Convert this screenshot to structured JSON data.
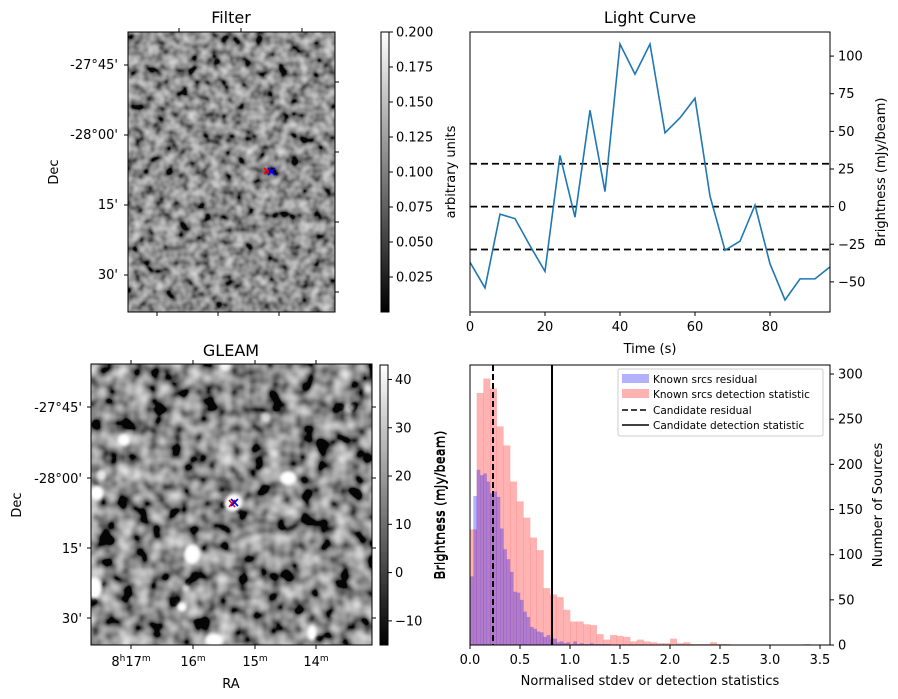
{
  "chart_data": [
    {
      "type": "heatmap",
      "title": "Filter",
      "ylabel": "Dec",
      "xlabel": "",
      "y_tick_labels": [
        "-27°45'",
        "-28°00'",
        "15'",
        "30'"
      ],
      "colormap": "gray",
      "colorbar": {
        "label": "arbitrary units",
        "range": [
          0.0,
          0.2
        ],
        "tick_labels": [
          "0.200",
          "0.175",
          "0.150",
          "0.125",
          "0.100",
          "0.075",
          "0.050",
          "0.025"
        ]
      },
      "markers": [
        {
          "color": "#ff0000",
          "symbol": "x",
          "label": "red-marker"
        },
        {
          "color": "#0000ff",
          "symbol": "x",
          "label": "blue-marker"
        }
      ]
    },
    {
      "type": "line",
      "title": "Light Curve",
      "xlabel": "Time (s)",
      "ylabel": "Brightness (mJy/beam)",
      "left_ylabel": "arbitrary units",
      "xlim": [
        0,
        96
      ],
      "ylim": [
        -70,
        116
      ],
      "x_ticks": [
        0,
        20,
        40,
        60,
        80
      ],
      "y_ticks": [
        -50,
        -25,
        0,
        25,
        50,
        75,
        100
      ],
      "y_tick_labels": [
        "−50",
        "−25",
        "0",
        "25",
        "50",
        "75",
        "100"
      ],
      "series": [
        {
          "name": "light curve",
          "color": "#1f77b4",
          "x": [
            0,
            4,
            8,
            12,
            16,
            20,
            24,
            28,
            32,
            36,
            40,
            44,
            48,
            52,
            56,
            60,
            64,
            68,
            72,
            76,
            80,
            84,
            88,
            92,
            96
          ],
          "y": [
            -37,
            -54,
            -5,
            -8,
            -26,
            -43,
            34,
            -7,
            64,
            10,
            108,
            88,
            108,
            49,
            59,
            72,
            7,
            -29,
            -23,
            1,
            -38,
            -62,
            -48,
            -48,
            -40
          ]
        }
      ],
      "hlines": [
        {
          "y": 28.5,
          "style": "dashed",
          "color": "#000000"
        },
        {
          "y": 0,
          "style": "dashed",
          "color": "#000000"
        },
        {
          "y": -28.5,
          "style": "dashed",
          "color": "#000000"
        }
      ]
    },
    {
      "type": "heatmap",
      "title": "GLEAM",
      "xlabel": "RA",
      "ylabel": "Dec",
      "x_tick_labels": [
        "8h17m",
        "16m",
        "15m",
        "14m"
      ],
      "y_tick_labels": [
        "-27°45'",
        "-28°00'",
        "15'",
        "30'"
      ],
      "colormap": "gray",
      "colorbar": {
        "label": "Brightness (mJy/beam)",
        "range": [
          -15,
          43
        ],
        "tick_labels": [
          "40",
          "30",
          "20",
          "10",
          "0",
          "−10"
        ]
      },
      "markers": [
        {
          "color": "#ff0000",
          "symbol": "x",
          "label": "red-marker"
        },
        {
          "color": "#0000ff",
          "symbol": "x",
          "label": "blue-marker"
        }
      ]
    },
    {
      "type": "bar",
      "subtype": "histogram",
      "xlabel": "Normalised stdev or detection statistics",
      "ylabel": "Number of Sources",
      "left_ylabel": "Brightness (mJy/beam)",
      "xlim": [
        0,
        3.6
      ],
      "ylim": [
        0,
        310
      ],
      "x_ticks": [
        0.0,
        0.5,
        1.0,
        1.5,
        2.0,
        2.5,
        3.0,
        3.5
      ],
      "x_tick_labels": [
        "0.0",
        "0.5",
        "1.0",
        "1.5",
        "2.0",
        "2.5",
        "3.0",
        "3.5"
      ],
      "y_ticks": [
        0,
        50,
        100,
        150,
        200,
        250,
        300
      ],
      "series": [
        {
          "name": "Known srcs residual",
          "color": "#0000ff",
          "alpha": 0.3,
          "bin_start": 0.0,
          "bin_width": 0.0333,
          "values": [
            76,
            165,
            194,
            188,
            190,
            181,
            168,
            170,
            164,
            129,
            106,
            95,
            81,
            59,
            58,
            50,
            37,
            31,
            20,
            18,
            15,
            14,
            9,
            11,
            7,
            7,
            3,
            4,
            2,
            3,
            1,
            4,
            1,
            2,
            1,
            1,
            2,
            1,
            1,
            1,
            1,
            1
          ]
        },
        {
          "name": "Known srcs detection statistic",
          "color": "#ff0000",
          "alpha": 0.3,
          "bin_start": 0.0,
          "bin_width": 0.0667,
          "values": [
            128,
            279,
            295,
            284,
            242,
            221,
            181,
            159,
            141,
            119,
            105,
            63,
            56,
            53,
            39,
            26,
            26,
            23,
            22,
            12,
            6,
            11,
            10,
            9,
            4,
            6,
            4,
            3,
            2,
            2,
            7,
            2,
            3,
            1,
            1,
            1,
            3,
            1,
            1,
            0,
            0,
            0,
            0,
            0,
            0,
            0,
            0,
            0,
            0,
            0,
            1
          ]
        }
      ],
      "vlines": [
        {
          "name": "Candidate residual",
          "x": 0.23,
          "style": "dashed",
          "color": "#000000"
        },
        {
          "name": "Candidate detection statistic",
          "x": 0.82,
          "style": "solid",
          "color": "#000000"
        }
      ],
      "legend": {
        "placement": "top-right",
        "entries": [
          "Known srcs residual",
          "Known srcs detection statistic",
          "Candidate residual",
          "Candidate detection statistic"
        ]
      }
    }
  ]
}
